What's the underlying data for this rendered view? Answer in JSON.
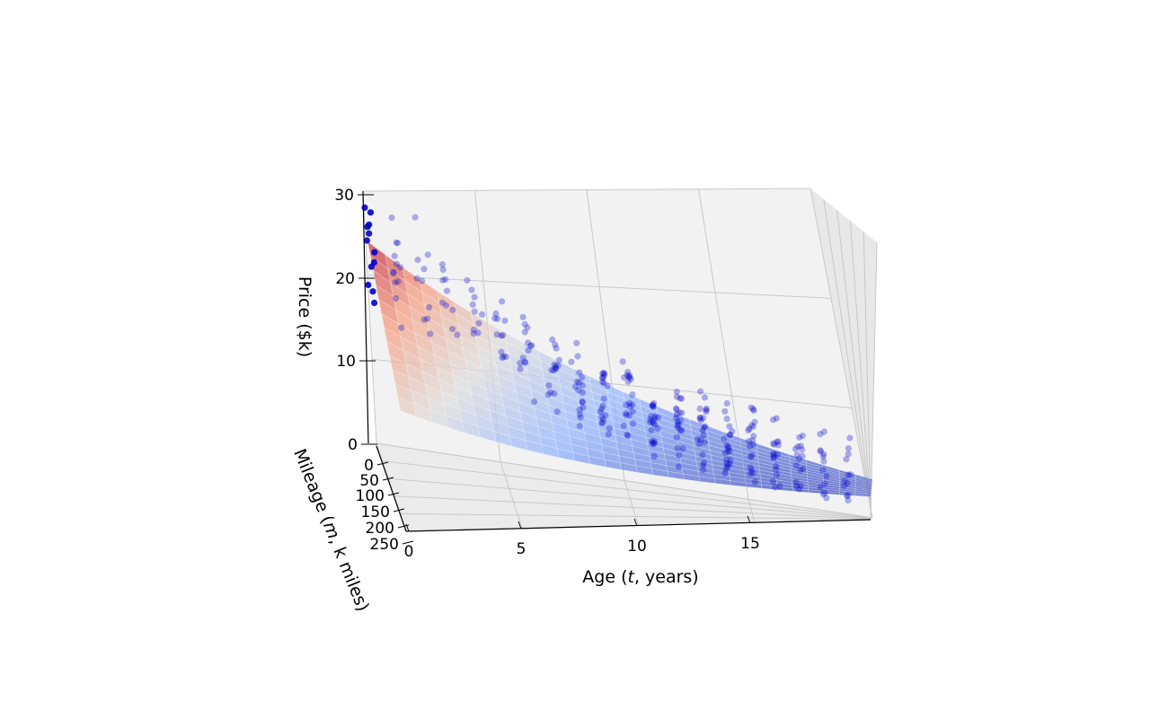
{
  "chart_data": {
    "type": "scatter",
    "projection": "3d",
    "x_axis": {
      "label": "Age (t, years)",
      "label_parts": [
        "Age (",
        "t",
        ", years)"
      ],
      "ticks": [
        "0",
        "5",
        "10",
        "15"
      ],
      "range": [
        0,
        20
      ]
    },
    "y_axis": {
      "label": "Mileage (m, k miles)",
      "label_parts": [
        "Mileage (",
        "m",
        ", k miles)"
      ],
      "ticks": [
        "0",
        "50",
        "100",
        "150",
        "200",
        "250"
      ],
      "range": [
        0,
        250
      ]
    },
    "z_axis": {
      "label": "Price ($k)",
      "ticks": [
        "0",
        "10",
        "20",
        "30"
      ],
      "range": [
        0,
        30
      ]
    },
    "grid": true,
    "panes": "light-gray",
    "surface": {
      "kind": "fitted exponential decay",
      "colormap": "coolwarm",
      "price_at_age_0": 24,
      "price_at_age_20": 3.5
    },
    "scatter": {
      "color": "#0000cc",
      "description": "used car listings clustered at integer ages 0-19",
      "points_per_age": [
        12,
        12,
        10,
        10,
        10,
        12,
        14,
        16,
        18,
        20,
        22,
        22,
        22,
        22,
        22,
        20,
        18,
        16,
        14,
        12
      ],
      "median_price_by_age": [
        23,
        22,
        21,
        19,
        17,
        15.5,
        14,
        13,
        12,
        11,
        10,
        9,
        8.5,
        8,
        7.5,
        7,
        6.5,
        6,
        5.5,
        5
      ]
    }
  }
}
